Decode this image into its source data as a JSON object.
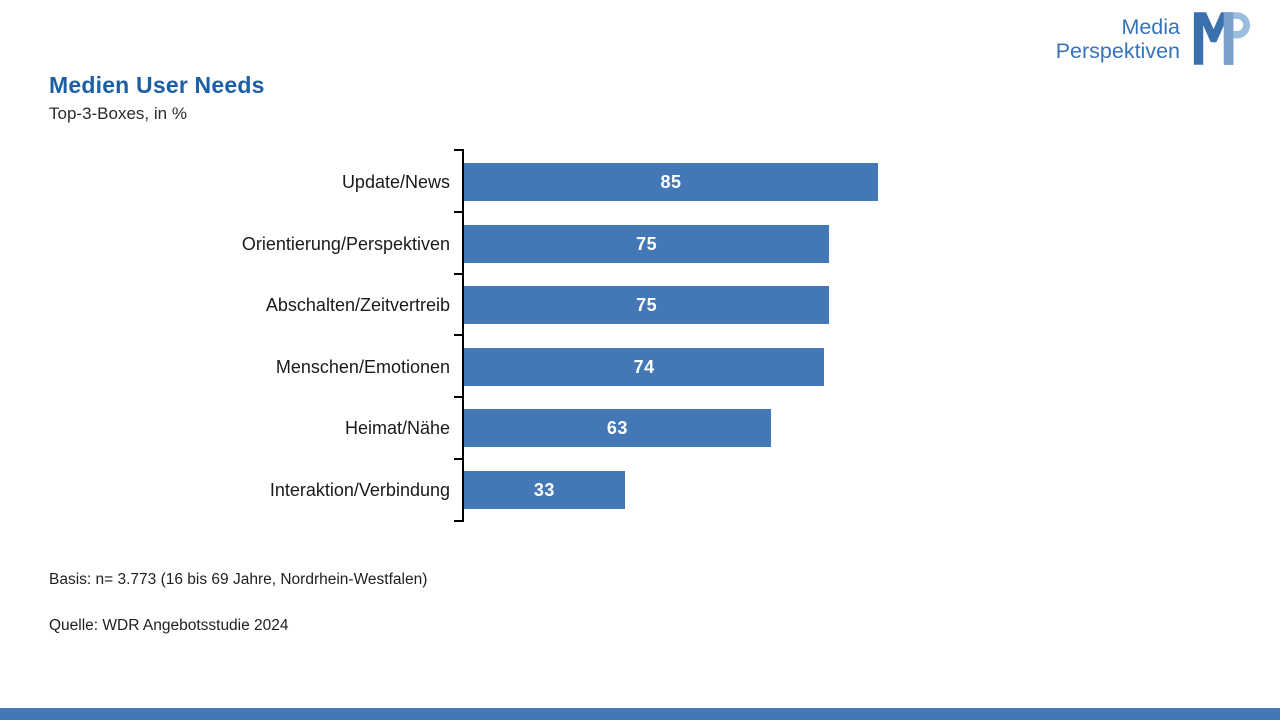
{
  "header": {
    "title": "Medien User Needs",
    "subtitle": "Top-3-Boxes, in %"
  },
  "logo": {
    "line1": "Media",
    "line2": "Perspektiven",
    "monogram": "MP",
    "text_color": "#3673B8",
    "m_color": "#3A70AE",
    "m_fold_color": "#7AA0CC",
    "p_color": "#9CBEDE"
  },
  "chart_data": {
    "type": "bar",
    "orientation": "horizontal",
    "title": "Medien User Needs",
    "subtitle": "Top-3-Boxes, in %",
    "categories": [
      "Update/News",
      "Orientierung/Perspektiven",
      "Abschalten/Zeitvertreib",
      "Menschen/Emotionen",
      "Heimat/Nähe",
      "Interaktion/Verbindung"
    ],
    "values": [
      85,
      75,
      75,
      74,
      63,
      33
    ],
    "xlim": [
      0,
      100
    ],
    "unit": "%",
    "grid": false,
    "bar_color": "#4377B5",
    "value_label_color": "#FFFFFF",
    "axis_color": "#000000",
    "value_labels_position": "center-inside"
  },
  "footer": {
    "basis": "Basis: n= 3.773 (16 bis 69 Jahre, Nordrhein-Westfalen)",
    "quelle": "Quelle: WDR Angebotsstudie 2024"
  },
  "accent_bar_color": "#4377B5"
}
